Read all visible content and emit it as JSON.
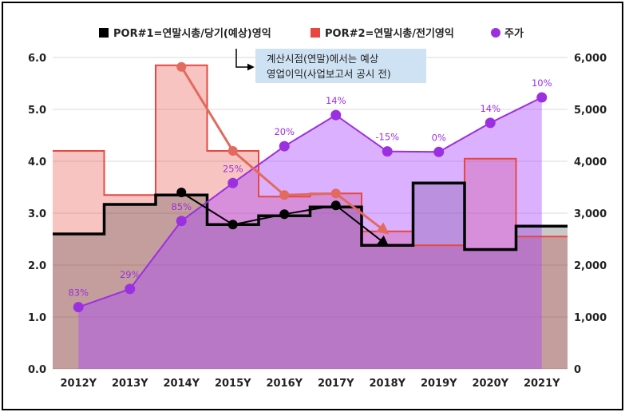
{
  "chart_data": {
    "type": "line",
    "categories": [
      "2012Y",
      "2013Y",
      "2014Y",
      "2015Y",
      "2016Y",
      "2017Y",
      "2018Y",
      "2019Y",
      "2020Y",
      "2021Y"
    ],
    "y_left": {
      "ylim": [
        0,
        6
      ],
      "ticks": [
        "0.0",
        "1.0",
        "2.0",
        "3.0",
        "4.0",
        "5.0",
        "6.0"
      ]
    },
    "y_right": {
      "ylim": [
        0,
        6000
      ],
      "ticks": [
        "0",
        "1,000",
        "2,000",
        "3,000",
        "4,000",
        "5,000",
        "6,000"
      ]
    },
    "series": [
      {
        "name": "POR#1=연말시총/당기(예상)영익",
        "kind": "step-area",
        "axis": "left",
        "color": "#000000",
        "values": [
          2.6,
          3.17,
          3.35,
          2.78,
          2.95,
          3.12,
          2.38,
          3.58,
          2.3,
          2.75
        ]
      },
      {
        "name": "POR#2=연말시총/전기영익",
        "kind": "step-area",
        "axis": "left",
        "color": "#e8473f",
        "values": [
          4.2,
          3.35,
          5.85,
          4.2,
          3.32,
          3.38,
          2.65,
          2.38,
          4.05,
          2.55
        ]
      },
      {
        "name": "주가",
        "kind": "area-line",
        "axis": "right",
        "color": "#9b30e0",
        "values": [
          1190,
          1540,
          2850,
          3580,
          4290,
          4890,
          4190,
          4180,
          4740,
          5230
        ],
        "labels": [
          "83%",
          "29%",
          "85%",
          "25%",
          "20%",
          "14%",
          "-15%",
          "0%",
          "14%",
          "10%"
        ]
      }
    ],
    "annotations": {
      "note_lines": [
        "계산시점(연말)에서는 예상",
        "영업이익(사업보고서 공시 전)"
      ],
      "black_dots": [
        {
          "x": 2.5,
          "y": 3.4
        },
        {
          "x": 3.5,
          "y": 2.78
        },
        {
          "x": 4.5,
          "y": 2.98
        },
        {
          "x": 5.5,
          "y": 3.15
        },
        {
          "x": 6.5,
          "y": 2.38
        }
      ],
      "red_dots": [
        {
          "x": 2.5,
          "y": 5.82
        },
        {
          "x": 3.5,
          "y": 4.2
        },
        {
          "x": 4.5,
          "y": 3.35
        },
        {
          "x": 5.5,
          "y": 3.38
        },
        {
          "x": 6.5,
          "y": 2.62
        }
      ]
    },
    "legend": {
      "position": "top"
    },
    "grid": true
  }
}
